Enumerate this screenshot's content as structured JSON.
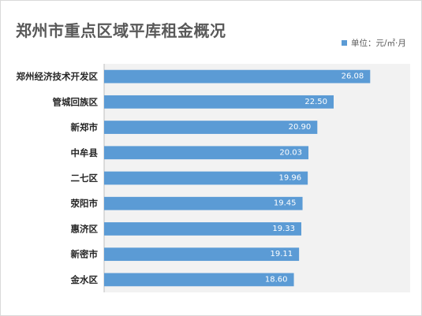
{
  "chart_data": {
    "type": "bar",
    "orientation": "horizontal",
    "title": "郑州市重点区域平库租金概况",
    "series": [
      {
        "name": "单位：元/㎡·月",
        "color": "#5b9bd5",
        "values": [
          26.08,
          22.5,
          20.9,
          20.03,
          19.96,
          19.45,
          19.33,
          19.11,
          18.6
        ],
        "labels": [
          "26.08",
          "22.50",
          "20.90",
          "20.03",
          "19.96",
          "19.45",
          "19.33",
          "19.11",
          "18.60"
        ]
      }
    ],
    "categories": [
      "郑州经济技术开发区",
      "管城回族区",
      "新郑市",
      "中牟县",
      "二七区",
      "荥阳市",
      "惠济区",
      "新密市",
      "金水区"
    ],
    "xlim": [
      0,
      30
    ],
    "grid": false,
    "legend_position": "top-right",
    "plot_background": "#f2f2f2"
  }
}
